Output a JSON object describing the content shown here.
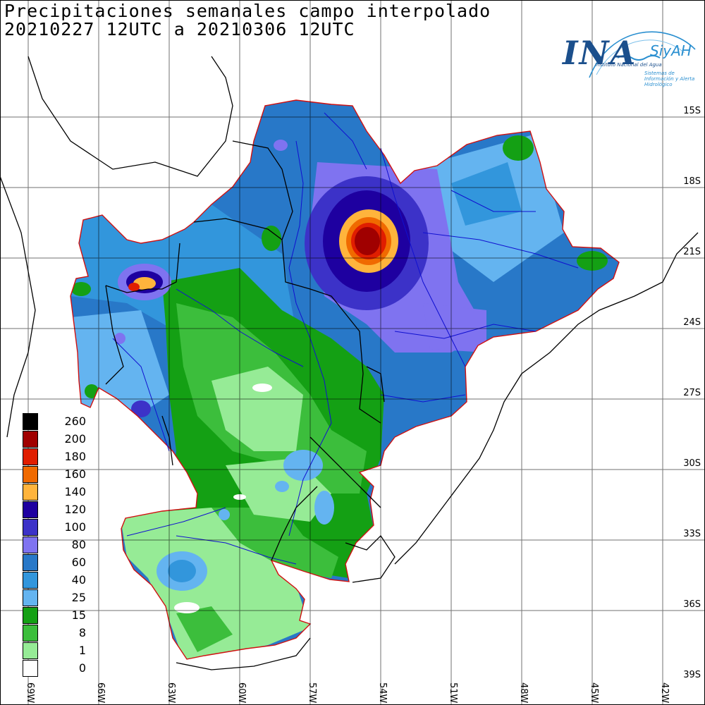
{
  "title": {
    "line1": "Precipitaciones semanales campo interpolado",
    "line2": "20210227 12UTC a 20210306 12UTC"
  },
  "logo": {
    "main": "INA",
    "brand": "SiyAH",
    "subtitle": "Instituto Nacional del Agua",
    "tagline": "Sistemas de Información y Alerta Hidrológico"
  },
  "lat_labels": [
    "15S",
    "18S",
    "21S",
    "24S",
    "27S",
    "30S",
    "33S",
    "36S",
    "39S"
  ],
  "lon_labels": [
    "69W",
    "66W",
    "63W",
    "60W",
    "57W",
    "54W",
    "51W",
    "48W",
    "45W",
    "42W"
  ],
  "legend": [
    {
      "label": "260",
      "color": "#000000"
    },
    {
      "label": "200",
      "color": "#a00000"
    },
    {
      "label": "180",
      "color": "#e01e00"
    },
    {
      "label": "160",
      "color": "#f06a00"
    },
    {
      "label": "140",
      "color": "#ffb43c"
    },
    {
      "label": "120",
      "color": "#1e00a0"
    },
    {
      "label": "100",
      "color": "#3c32c8"
    },
    {
      "label": "80",
      "color": "#7f73f0"
    },
    {
      "label": "60",
      "color": "#2878c8"
    },
    {
      "label": "40",
      "color": "#3296dc"
    },
    {
      "label": "25",
      "color": "#64b4f0"
    },
    {
      "label": "15",
      "color": "#14a014"
    },
    {
      "label": "8",
      "color": "#3cbe3c"
    },
    {
      "label": "1",
      "color": "#96eb96"
    },
    {
      "label": "0",
      "color": "#ffffff"
    }
  ],
  "colors": {
    "basin_outline": "#d01010",
    "river": "#1010d0",
    "border": "#000000",
    "grid": "#000000"
  }
}
